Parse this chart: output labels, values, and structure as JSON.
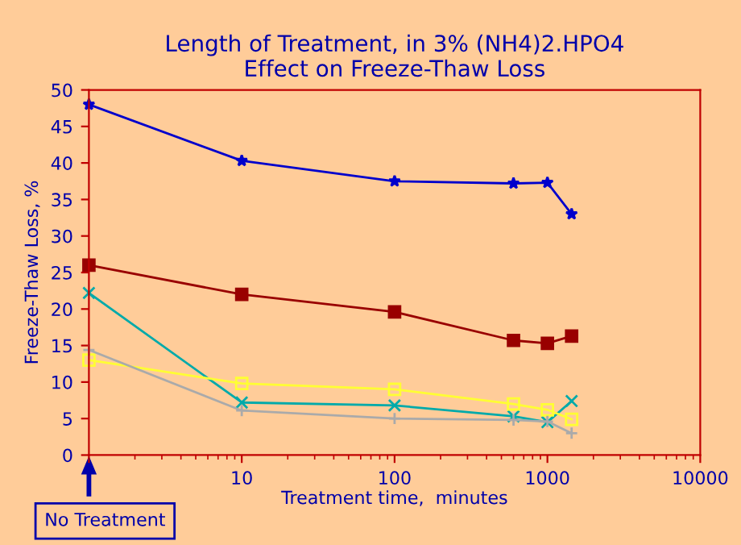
{
  "chart_data": {
    "type": "line",
    "title": "Length of Treatment, in 3% (NH4)2.HPO4\nEffect on Freeze-Thaw Loss",
    "xlabel": "Treatment time,  minutes",
    "ylabel": "Freeze-Thaw Loss, %",
    "x": [
      1,
      10,
      100,
      600,
      1000,
      1440
    ],
    "series": [
      {
        "color": "#0000cc",
        "marker": "star",
        "values": [
          48,
          40.3,
          37.5,
          37.2,
          37.3,
          33
        ]
      },
      {
        "color": "#990000",
        "marker": "square",
        "values": [
          26,
          22,
          19.6,
          15.7,
          15.3,
          16.3
        ]
      },
      {
        "color": "#00aaaa",
        "marker": "cross",
        "values": [
          22.2,
          7.2,
          6.8,
          5.3,
          4.5,
          7.4
        ]
      },
      {
        "color": "#ffff33",
        "marker": "square_open",
        "values": [
          13,
          9.8,
          9,
          7,
          6.2,
          4.9
        ]
      },
      {
        "color": "#aaaaaa",
        "marker": "plus",
        "values": [
          14.4,
          6.1,
          5.0,
          4.8,
          4.6,
          3.0
        ]
      }
    ],
    "log": "x",
    "xlim": [
      1,
      10000
    ],
    "xticks": [
      {
        "value": 1,
        "label": null
      },
      10,
      100,
      1000,
      10000
    ],
    "ylim": [
      0,
      50
    ],
    "yticks": [
      0,
      5,
      10,
      15,
      20,
      25,
      30,
      35,
      40,
      45,
      50
    ],
    "annotations": [
      "No Treatment"
    ],
    "grid": false,
    "legend": false
  }
}
